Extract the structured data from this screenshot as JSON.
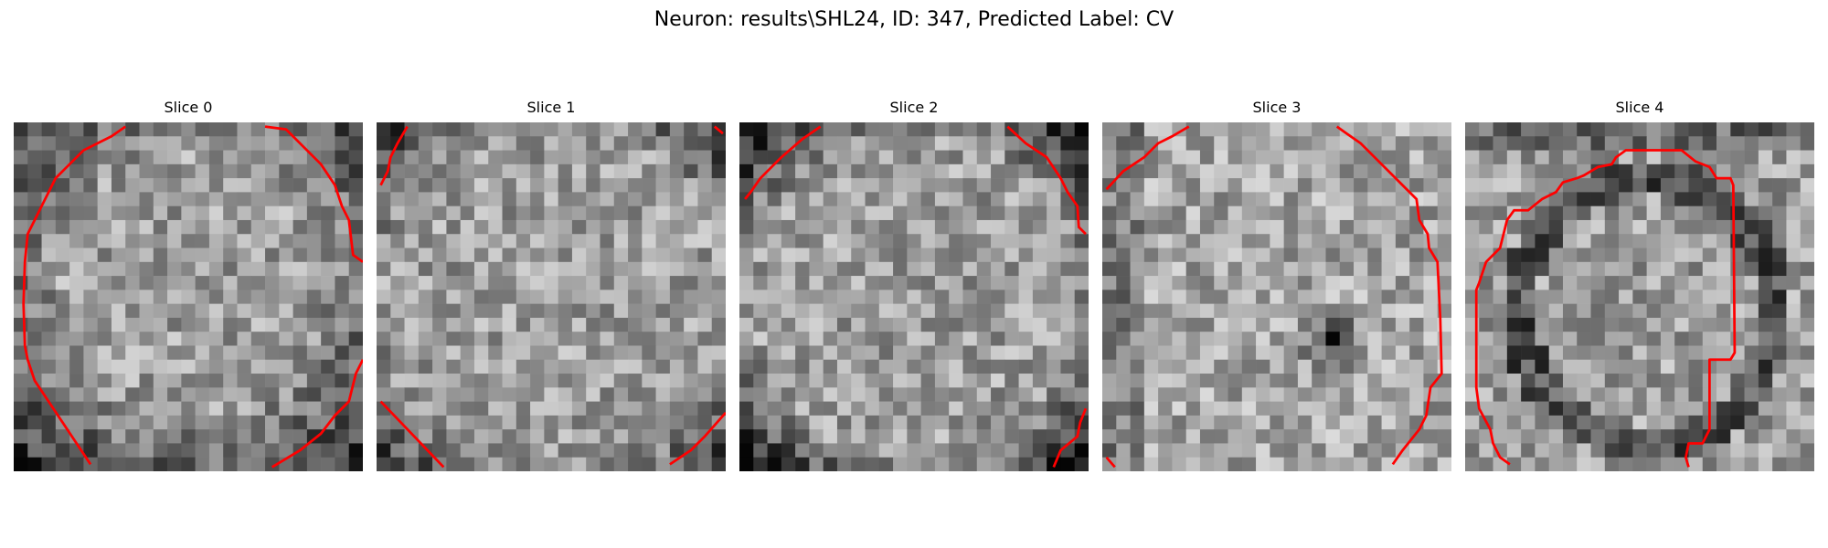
{
  "figure": {
    "title": "Neuron: results\\SHL24, ID: 347, Predicted Label: CV"
  },
  "colors": {
    "contour": "#ff0000",
    "background": "#ffffff",
    "colormap": "gray"
  },
  "slices": [
    {
      "title": "Slice 0",
      "image_desc": "grayscale-noise-patch"
    },
    {
      "title": "Slice 1",
      "image_desc": "grayscale-noise-patch"
    },
    {
      "title": "Slice 2",
      "image_desc": "grayscale-noise-patch"
    },
    {
      "title": "Slice 3",
      "image_desc": "grayscale-noise-patch"
    },
    {
      "title": "Slice 4",
      "image_desc": "grayscale-noise-patch"
    }
  ]
}
